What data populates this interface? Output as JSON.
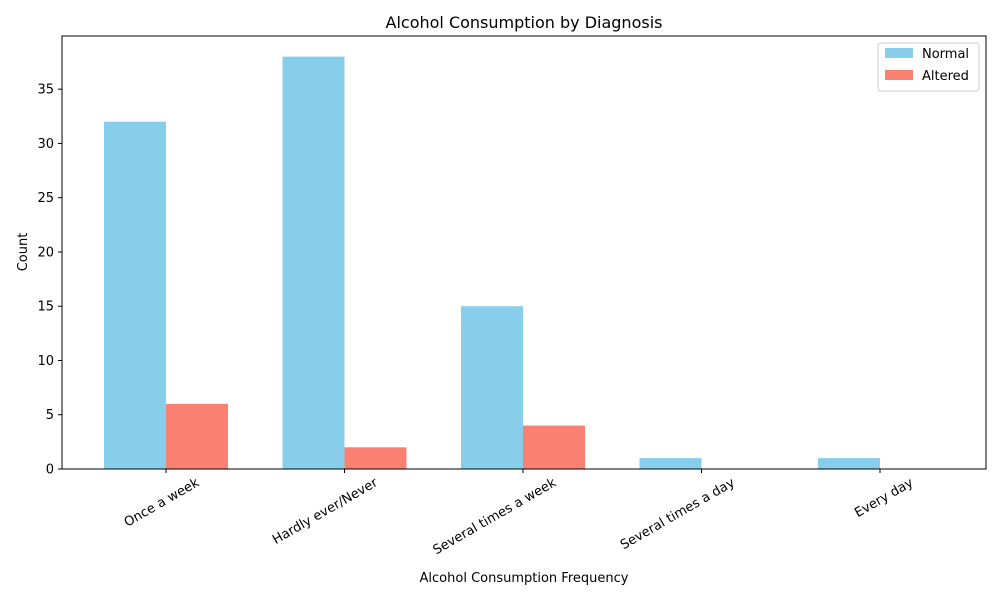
{
  "chart_data": {
    "type": "bar",
    "title": "Alcohol Consumption by Diagnosis",
    "xlabel": "Alcohol Consumption Frequency",
    "ylabel": "Count",
    "categories": [
      "Once a week",
      "Hardly ever/Never",
      "Several times a week",
      "Several times a day",
      "Every day"
    ],
    "series": [
      {
        "name": "Normal",
        "color": "#87ceeb",
        "values": [
          32,
          38,
          15,
          1,
          1
        ]
      },
      {
        "name": "Altered",
        "color": "#fa8072",
        "values": [
          6,
          2,
          4,
          0,
          0
        ]
      }
    ],
    "ylim": [
      0,
      39.9
    ],
    "yticks": [
      0,
      5,
      10,
      15,
      20,
      25,
      30,
      35
    ],
    "grid": false,
    "legend_position": "top-right"
  }
}
